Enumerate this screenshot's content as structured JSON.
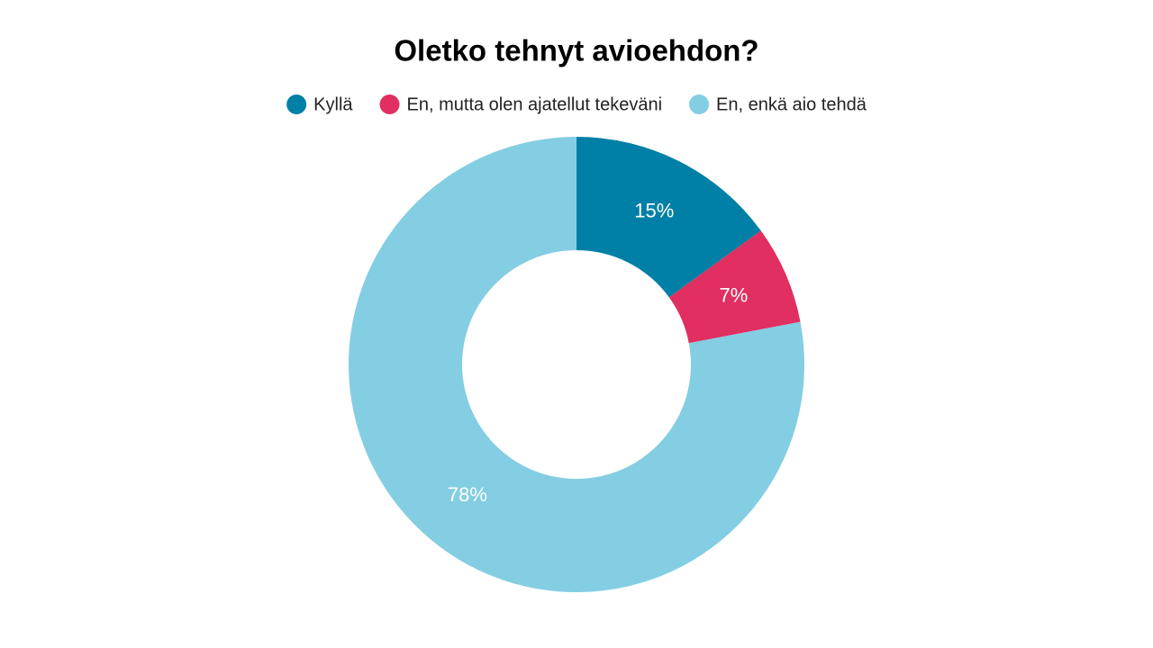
{
  "chart_data": {
    "type": "donut",
    "title": "Oletko tehnyt avioehdon?",
    "categories": [
      "Kyllä",
      "En, mutta olen ajatellut tekeväni",
      "En, enkä aio tehdä"
    ],
    "values": [
      15,
      7,
      78
    ],
    "value_labels": [
      "15%",
      "7%",
      "78%"
    ],
    "colors": [
      "#0080a6",
      "#e02f60",
      "#83cee2"
    ],
    "legend": "top"
  }
}
